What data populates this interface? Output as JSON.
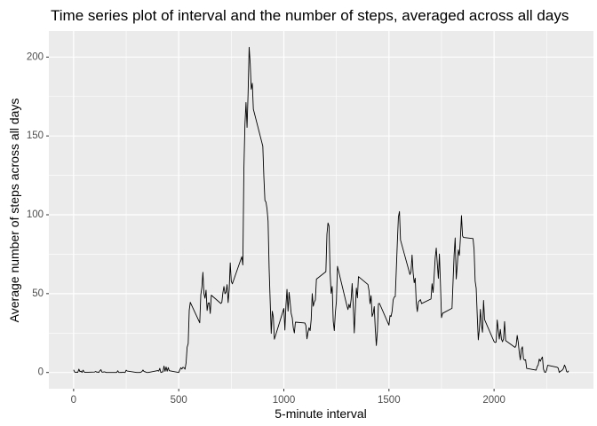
{
  "chart_data": {
    "type": "line",
    "title": "Time series plot of interval and the number of steps, averaged across all days",
    "x_label": "5-minute interval",
    "y_label": "Average number of steps across all days",
    "color": "#000000",
    "grid": true,
    "xlim": [
      -117.75,
      2472.75
    ],
    "ylim": [
      -10.3,
      216.5
    ],
    "xticks": [
      0,
      500,
      1000,
      1500,
      2000
    ],
    "yticks": [
      0,
      50,
      100,
      150,
      200
    ],
    "x": [
      0,
      5,
      10,
      15,
      20,
      25,
      30,
      35,
      40,
      45,
      50,
      55,
      100,
      105,
      110,
      115,
      120,
      125,
      130,
      135,
      140,
      145,
      150,
      155,
      200,
      205,
      210,
      215,
      220,
      225,
      230,
      235,
      240,
      245,
      250,
      255,
      300,
      305,
      310,
      315,
      320,
      325,
      330,
      335,
      340,
      345,
      350,
      355,
      400,
      405,
      410,
      415,
      420,
      425,
      430,
      435,
      440,
      445,
      450,
      455,
      500,
      505,
      510,
      515,
      520,
      525,
      530,
      535,
      540,
      545,
      550,
      555,
      600,
      605,
      610,
      615,
      620,
      625,
      630,
      635,
      640,
      645,
      650,
      655,
      700,
      705,
      710,
      715,
      720,
      725,
      730,
      735,
      740,
      745,
      750,
      755,
      800,
      805,
      810,
      815,
      820,
      825,
      830,
      835,
      840,
      845,
      850,
      855,
      900,
      905,
      910,
      915,
      920,
      925,
      930,
      935,
      940,
      945,
      950,
      955,
      1000,
      1005,
      1010,
      1015,
      1020,
      1025,
      1030,
      1035,
      1040,
      1045,
      1050,
      1055,
      1100,
      1105,
      1110,
      1115,
      1120,
      1125,
      1130,
      1135,
      1140,
      1145,
      1150,
      1155,
      1200,
      1205,
      1210,
      1215,
      1220,
      1225,
      1230,
      1235,
      1240,
      1245,
      1250,
      1255,
      1300,
      1305,
      1310,
      1315,
      1320,
      1325,
      1330,
      1335,
      1340,
      1345,
      1350,
      1355,
      1400,
      1405,
      1410,
      1415,
      1420,
      1425,
      1430,
      1435,
      1440,
      1445,
      1450,
      1455,
      1500,
      1505,
      1510,
      1515,
      1520,
      1525,
      1530,
      1535,
      1540,
      1545,
      1550,
      1555,
      1600,
      1605,
      1610,
      1615,
      1620,
      1625,
      1630,
      1635,
      1640,
      1645,
      1650,
      1655,
      1700,
      1705,
      1710,
      1715,
      1720,
      1725,
      1730,
      1735,
      1740,
      1745,
      1750,
      1755,
      1800,
      1805,
      1810,
      1815,
      1820,
      1825,
      1830,
      1835,
      1840,
      1845,
      1850,
      1855,
      1900,
      1905,
      1910,
      1915,
      1920,
      1925,
      1930,
      1935,
      1940,
      1945,
      1950,
      1955,
      2000,
      2005,
      2010,
      2015,
      2020,
      2025,
      2030,
      2035,
      2040,
      2045,
      2050,
      2055,
      2100,
      2105,
      2110,
      2115,
      2120,
      2125,
      2130,
      2135,
      2140,
      2145,
      2150,
      2155,
      2200,
      2205,
      2210,
      2215,
      2220,
      2225,
      2230,
      2235,
      2240,
      2245,
      2250,
      2255,
      2300,
      2305,
      2310,
      2315,
      2320,
      2325,
      2330,
      2335,
      2340,
      2345,
      2350,
      2355
    ],
    "values": [
      1.7,
      0.3,
      0.1,
      0.2,
      0.1,
      2.1,
      0.5,
      0.9,
      0,
      1.5,
      0.3,
      0.1,
      0.3,
      0.7,
      0.2,
      0.3,
      0,
      1.1,
      1.8,
      0.2,
      0.2,
      0.4,
      0.3,
      0,
      0,
      0,
      1.1,
      0,
      0,
      0.1,
      0,
      0.2,
      0,
      0,
      1.5,
      0.9,
      0,
      0,
      0,
      0,
      0.2,
      0.6,
      1.6,
      0.6,
      0.5,
      0.1,
      0,
      0,
      1.2,
      0.9,
      2.6,
      0,
      0.3,
      0.4,
      4.1,
      0.7,
      3.5,
      0.8,
      3.1,
      1.1,
      0,
      1.6,
      3,
      2.2,
      3.3,
      3,
      2.1,
      6.1,
      16,
      18.3,
      39.5,
      44.5,
      31.5,
      49.3,
      53.8,
      63.5,
      50,
      47.1,
      52.2,
      39.3,
      44,
      44.2,
      37.4,
      49,
      43.8,
      44.4,
      50.5,
      54.5,
      49.9,
      51,
      55.7,
      44.3,
      52.3,
      69.5,
      57.8,
      56.2,
      73.4,
      68.2,
      129.4,
      157.5,
      171.2,
      155.4,
      177.3,
      206.2,
      195.9,
      179.6,
      183.4,
      167,
      143.5,
      124,
      109.1,
      108.1,
      103.7,
      96,
      66.2,
      45.2,
      24.8,
      38.8,
      35,
      21.1,
      40.6,
      26.9,
      42.4,
      52.7,
      38.9,
      50.8,
      44.3,
      37.4,
      34.7,
      28.3,
      25.1,
      31.9,
      31.4,
      29.7,
      21.3,
      25.5,
      28.4,
      26.5,
      33.4,
      50,
      42,
      44.6,
      46,
      59.2,
      63.9,
      87.7,
      94.8,
      92.8,
      63.4,
      50.2,
      54.5,
      32.4,
      26.5,
      37.7,
      45.1,
      67.3,
      42.3,
      39.9,
      43.3,
      41,
      46.2,
      56.4,
      42.8,
      25.1,
      40,
      53.5,
      47.3,
      60.8,
      55.8,
      52,
      43.6,
      48.7,
      35.5,
      37.5,
      41.8,
      27.5,
      17.1,
      26.1,
      43.6,
      43.8,
      30,
      36.1,
      35.5,
      38.8,
      46,
      47.8,
      48.1,
      65.3,
      82.9,
      98.7,
      102.1,
      84,
      62.1,
      64.1,
      74.5,
      63.2,
      56.9,
      59.8,
      43.9,
      38.6,
      44.7,
      45.5,
      46.2,
      43.7,
      46.6,
      56.3,
      50.7,
      61.2,
      72.7,
      78.9,
      68.9,
      59.7,
      75.1,
      56.5,
      34.8,
      37.5,
      40.7,
      58,
      74.7,
      85.3,
      59.3,
      67.8,
      77.7,
      74.2,
      85.3,
      99.5,
      86.6,
      85.6,
      84.9,
      77.8,
      58,
      53.4,
      36.3,
      20.7,
      27.4,
      40,
      30.2,
      25.5,
      45.7,
      33.5,
      19.6,
      19,
      19.3,
      33.3,
      26.8,
      21.2,
      27.3,
      21.3,
      19.5,
      21.3,
      32.3,
      20.2,
      15.9,
      17.2,
      23.5,
      19.2,
      12.5,
      8,
      14.7,
      16.3,
      8.7,
      7.8,
      8.1,
      2.6,
      1.5,
      3.7,
      4.8,
      8.5,
      7.1,
      8.7,
      9.8,
      2.2,
      0.3,
      0.1,
      1.6,
      4.6,
      3.3,
      2.8,
      0,
      0.8,
      1,
      1.6,
      2.6,
      4.7,
      3.3,
      0.6,
      0.2,
      1.1
    ]
  }
}
